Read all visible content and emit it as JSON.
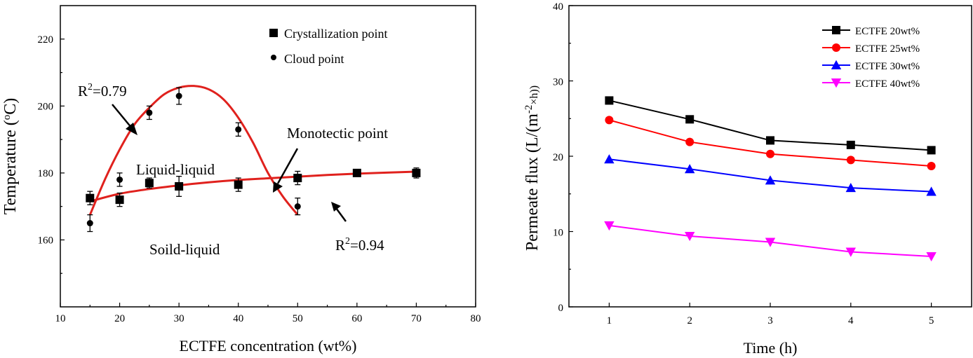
{
  "chart_data": [
    {
      "type": "scatter",
      "xlabel": "ECTFE concentration (wt%)",
      "ylabel": "Temperature (",
      "ylabel_sup": "o",
      "ylabel_unit": "C)",
      "xlim": [
        10,
        80
      ],
      "ylim": [
        140,
        230
      ],
      "xticks": [
        10,
        20,
        30,
        40,
        50,
        60,
        70,
        80
      ],
      "yticks": [
        160,
        180,
        200,
        220
      ],
      "legend_position": "top-right",
      "series": [
        {
          "name": "Crystallization point",
          "marker": "square",
          "color": "#000000",
          "points": [
            {
              "x": 15,
              "y": 172.5,
              "err": 2
            },
            {
              "x": 20,
              "y": 172,
              "err": 2
            },
            {
              "x": 25,
              "y": 177,
              "err": 1.5
            },
            {
              "x": 30,
              "y": 176,
              "err": 3
            },
            {
              "x": 40,
              "y": 176.5,
              "err": 2
            },
            {
              "x": 50,
              "y": 178.5,
              "err": 2
            },
            {
              "x": 60,
              "y": 180,
              "err": 1
            },
            {
              "x": 70,
              "y": 180,
              "err": 1.5
            }
          ]
        },
        {
          "name": "Cloud point",
          "marker": "circle",
          "color": "#000000",
          "points": [
            {
              "x": 15,
              "y": 165,
              "err": 2.5
            },
            {
              "x": 20,
              "y": 178,
              "err": 2
            },
            {
              "x": 25,
              "y": 198,
              "err": 2
            },
            {
              "x": 30,
              "y": 203,
              "err": 2.5
            },
            {
              "x": 40,
              "y": 193,
              "err": 2
            },
            {
              "x": 50,
              "y": 170,
              "err": 2.5
            }
          ]
        }
      ],
      "fits": [
        {
          "label": "Cloud point fit",
          "color": "#e0211d",
          "points": [
            [
              15,
              167.5
            ],
            [
              17.5,
              178
            ],
            [
              20,
              187
            ],
            [
              22.5,
              194.5
            ],
            [
              25,
              199.5
            ],
            [
              27.5,
              203.5
            ],
            [
              30,
              205.5
            ],
            [
              32.5,
              206
            ],
            [
              35,
              205
            ],
            [
              37.5,
              202
            ],
            [
              40,
              196.5
            ],
            [
              42.5,
              189
            ],
            [
              45,
              180
            ],
            [
              47.5,
              173
            ],
            [
              50,
              167.5
            ]
          ]
        },
        {
          "label": "Crystallization fit",
          "color": "#e0211d",
          "points": [
            [
              15,
              171.5
            ],
            [
              20,
              173.8
            ],
            [
              25,
              175.2
            ],
            [
              30,
              176.3
            ],
            [
              35,
              177.2
            ],
            [
              40,
              177.9
            ],
            [
              45,
              178.4
            ],
            [
              50,
              178.9
            ],
            [
              55,
              179.4
            ],
            [
              60,
              179.8
            ],
            [
              65,
              180.1
            ],
            [
              70,
              180.4
            ]
          ]
        }
      ],
      "annotations": {
        "r2_cloud_base": "R",
        "r2_cloud_sup": "2",
        "r2_cloud_value": "=0.79",
        "r2_cryst_base": "R",
        "r2_cryst_sup": "2",
        "r2_cryst_value": "=0.94",
        "monotectic": "Monotectic point",
        "liquid_liquid": "Liquid-liquid",
        "solid_liquid": "Soild-liquid"
      }
    },
    {
      "type": "line",
      "xlabel": "Time (h)",
      "ylabel_main": "Permeate flux (L/(m",
      "ylabel_sup": "-2",
      "ylabel_mid": "×h))",
      "xlim": [
        0.5,
        5.5
      ],
      "ylim": [
        0,
        40
      ],
      "xticks": [
        1,
        2,
        3,
        4,
        5
      ],
      "yticks": [
        0,
        10,
        20,
        30,
        40
      ],
      "legend_position": "top-right",
      "x": [
        1,
        2,
        3,
        4,
        5
      ],
      "series": [
        {
          "name": "ECTFE 20wt%",
          "marker": "square",
          "color": "#000000",
          "values": [
            27.4,
            24.9,
            22.1,
            21.5,
            20.8
          ]
        },
        {
          "name": "ECTFE 25wt%",
          "marker": "circle",
          "color": "#ff0000",
          "values": [
            24.8,
            21.9,
            20.3,
            19.5,
            18.7
          ]
        },
        {
          "name": "ECTFE 30wt%",
          "marker": "triangle-up",
          "color": "#0000ff",
          "values": [
            19.6,
            18.3,
            16.8,
            15.8,
            15.3
          ]
        },
        {
          "name": "ECTFE 40wt%",
          "marker": "triangle-down",
          "color": "#ff00ff",
          "values": [
            10.8,
            9.4,
            8.6,
            7.3,
            6.7
          ]
        }
      ]
    }
  ]
}
